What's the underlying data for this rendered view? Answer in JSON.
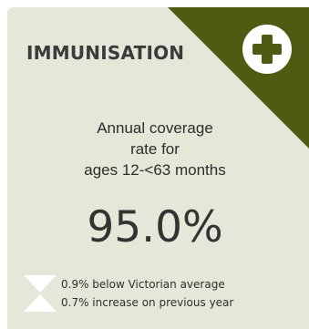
{
  "card": {
    "title": "IMMUNISATION",
    "icon": "plus-circle-icon",
    "description_lines": [
      "Annual coverage",
      "rate for",
      "ages 12-<63 months"
    ],
    "value": "95.0%",
    "comparisons": [
      {
        "indicator": "down-triangle",
        "text": "0.9% below Victorian average"
      },
      {
        "indicator": "up-triangle",
        "text": "0.7% increase on previous year"
      }
    ]
  },
  "colors": {
    "card_background": "#e6e6d9",
    "accent_corner": "#4f5a12",
    "indicator": "#ffffff",
    "text": "#333333"
  }
}
